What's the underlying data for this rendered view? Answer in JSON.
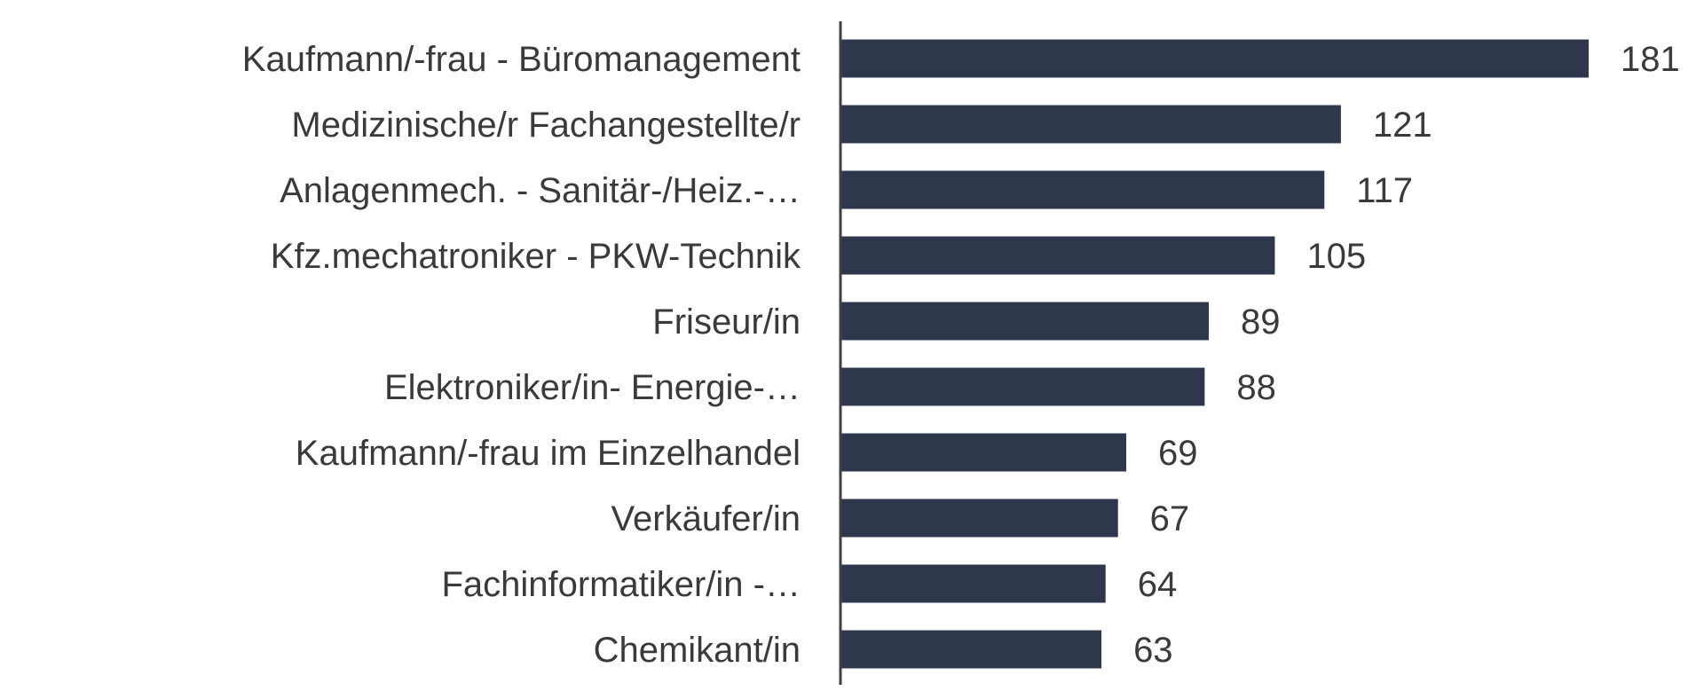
{
  "chart_data": {
    "type": "bar",
    "orientation": "horizontal",
    "title": "",
    "xlabel": "",
    "ylabel": "",
    "categories": [
      "Kaufmann/-frau - Büromanagement",
      "Medizinische/r Fachangestellte/r",
      "Anlagenmech. - Sanitär-/Heiz.-…",
      "Kfz.mechatroniker - PKW-Technik",
      "Friseur/in",
      "Elektroniker/in- Energie-…",
      "Kaufmann/-frau im Einzelhandel",
      "Verkäufer/in",
      "Fachinformatiker/in -…",
      "Chemikant/in"
    ],
    "values": [
      181,
      121,
      117,
      105,
      89,
      88,
      69,
      67,
      64,
      63
    ],
    "value_labels": [
      "181",
      "121",
      "117",
      "105",
      "89",
      "88",
      "69",
      "67",
      "64",
      "63"
    ],
    "xlim": [
      0,
      181
    ],
    "grid": false,
    "legend": "none",
    "bar_color": "#2e374b",
    "axis_color": "#404040",
    "text_color": "#3a3a3a"
  }
}
